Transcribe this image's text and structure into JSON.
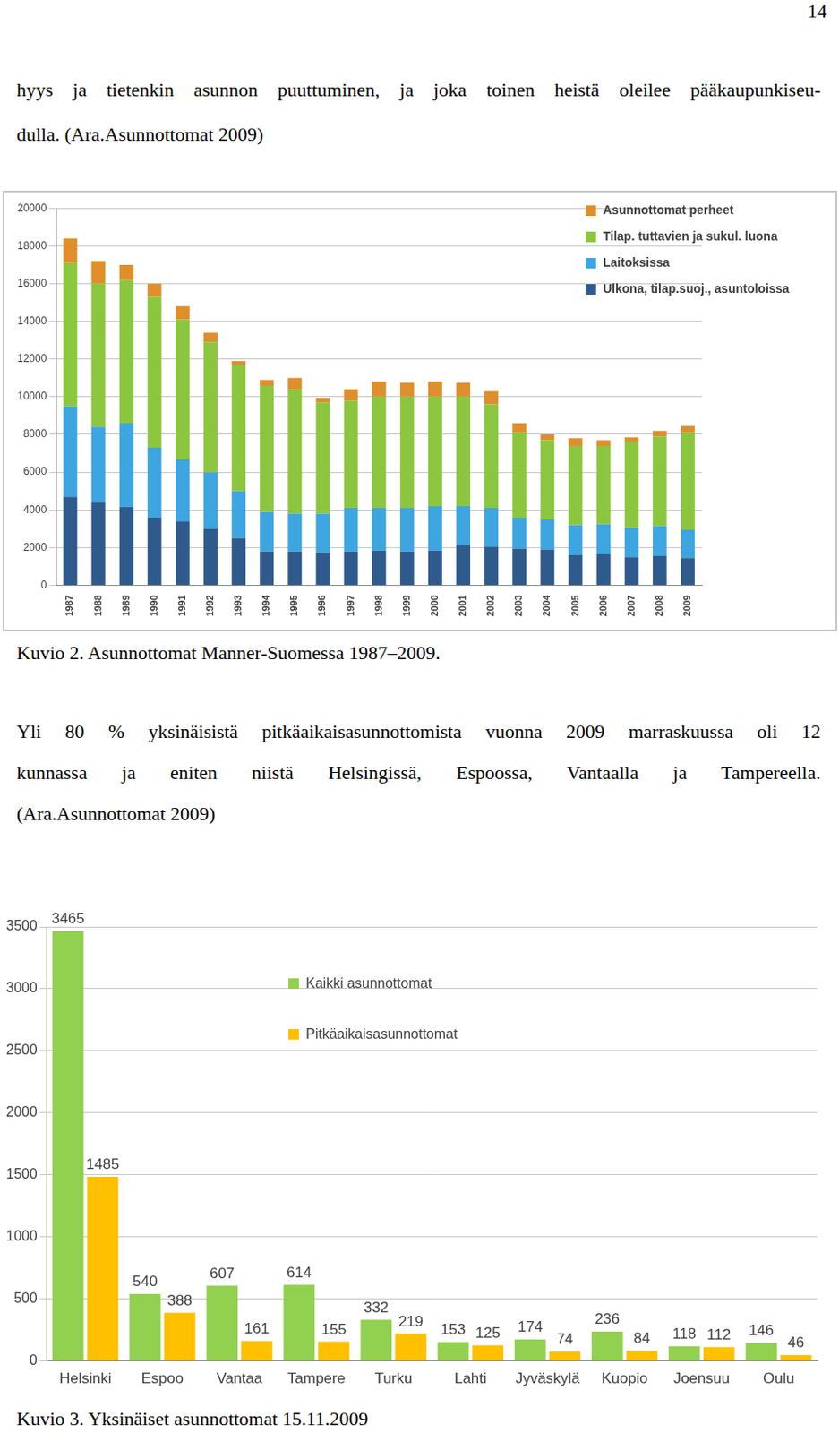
{
  "document": {
    "page_number": "14",
    "paragraph_1": [
      "hyys ja tietenkin asunnon puuttuminen, ja joka toinen heistä oleilee pääkaupunkiseu-",
      "dulla. (Ara.Asunnottomat 2009)"
    ],
    "caption_1": "Kuvio 2. Asunnottomat Manner-Suomessa 1987–2009.",
    "paragraph_2": [
      "Yli 80 % yksinäisistä pitkäaikaisasunnottomista vuonna 2009 marraskuussa oli 12",
      "kunnassa ja eniten niistä Helsingissä, Espoossa, Vantaalla ja Tampereella.",
      "(Ara.Asunnottomat 2009)"
    ],
    "caption_2": "Kuvio 3. Yksinäiset asunnottomat 15.11.2009"
  },
  "chart_data": [
    {
      "type": "bar",
      "stacked": true,
      "grid": true,
      "legend": "top right",
      "data_labels": false,
      "categories": [
        "1987",
        "1988",
        "1989",
        "1990",
        "1991",
        "1992",
        "1993",
        "1994",
        "1995",
        "1996",
        "1997",
        "1998",
        "1999",
        "2000",
        "2001",
        "2002",
        "2003",
        "2004",
        "2005",
        "2006",
        "2007",
        "2008",
        "2009"
      ],
      "ylim": [
        0,
        20000
      ],
      "yticks": [
        0,
        2000,
        4000,
        6000,
        8000,
        10000,
        12000,
        14000,
        16000,
        18000,
        20000
      ],
      "series": [
        {
          "name": "Ulkona, tilap.suoj., asuntoloissa",
          "color": "#2f5b8c",
          "values": [
            4700,
            4400,
            4150,
            3600,
            3400,
            3000,
            2500,
            1800,
            1800,
            1750,
            1800,
            1850,
            1800,
            1850,
            2150,
            2050,
            1950,
            1900,
            1600,
            1650,
            1500,
            1550,
            1450
          ]
        },
        {
          "name": "Laitoksissa",
          "color": "#3da5e0",
          "values": [
            4800,
            4000,
            4450,
            3700,
            3300,
            3000,
            2500,
            2100,
            2000,
            2050,
            2300,
            2250,
            2300,
            2350,
            2050,
            2050,
            1650,
            1600,
            1600,
            1600,
            1550,
            1600,
            1500
          ]
        },
        {
          "name": "Tilap. tuttavien  ja sukul. luona",
          "color": "#8cc63e",
          "values": [
            7600,
            7600,
            7600,
            8000,
            7400,
            6900,
            6700,
            6700,
            6600,
            5900,
            5700,
            5900,
            5900,
            5800,
            5800,
            5500,
            4500,
            4200,
            4200,
            4150,
            4550,
            4750,
            5150
          ]
        },
        {
          "name": "Asunnottomat perheet",
          "color": "#de8f2c",
          "values": [
            1300,
            1200,
            800,
            700,
            700,
            500,
            200,
            300,
            600,
            250,
            600,
            800,
            750,
            800,
            750,
            700,
            500,
            300,
            400,
            300,
            250,
            300,
            350
          ]
        }
      ]
    },
    {
      "type": "bar",
      "stacked": false,
      "grid": true,
      "legend": "top",
      "data_labels": true,
      "categories": [
        "Helsinki",
        "Espoo",
        "Vantaa",
        "Tampere",
        "Turku",
        "Lahti",
        "Jyväskylä",
        "Kuopio",
        "Joensuu",
        "Oulu"
      ],
      "ylim": [
        0,
        3500
      ],
      "yticks": [
        0,
        500,
        1000,
        1500,
        2000,
        2500,
        3000,
        3500
      ],
      "series": [
        {
          "name": "Kaikki asunnottomat",
          "color": "#92d050",
          "values": [
            3465,
            540,
            607,
            614,
            332,
            153,
            174,
            236,
            118,
            146
          ]
        },
        {
          "name": "Pitkäaikaisasunnottomat",
          "color": "#ffc000",
          "values": [
            1485,
            388,
            161,
            155,
            219,
            125,
            74,
            84,
            112,
            46
          ]
        }
      ]
    }
  ]
}
